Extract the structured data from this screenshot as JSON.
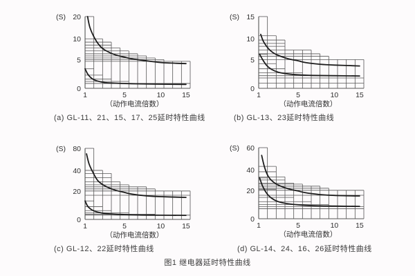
{
  "figure_caption": "图1 继电器延时特性曲线",
  "colors": {
    "background": "#fdfbfc",
    "grid": "#555555",
    "curve": "#1c1c1c",
    "text": "#2f2f2f",
    "caption_text": "#3b3b3b"
  },
  "chart_data": [
    {
      "type": "line",
      "id": "a",
      "caption": "(a) GL-11、21、15、17、25延时特性曲线",
      "y_unit": "(S)",
      "xlabel": "（动作电流倍数）",
      "x_ticks": [
        1,
        5,
        10,
        15
      ],
      "y_ticks": [
        0,
        5,
        10,
        20
      ],
      "xlim": [
        1,
        15
      ],
      "ylim": [
        0,
        20
      ],
      "series": [
        {
          "name": "upper-limit-curve",
          "points": [
            [
              1.25,
              20
            ],
            [
              1.5,
              15
            ],
            [
              2,
              10
            ],
            [
              2.5,
              8.3
            ],
            [
              3,
              7.3
            ],
            [
              4,
              6.2
            ],
            [
              5,
              5.6
            ],
            [
              6,
              5.2
            ],
            [
              8,
              4.8
            ],
            [
              10,
              4.5
            ],
            [
              12,
              4.4
            ],
            [
              15,
              4.3
            ]
          ]
        },
        {
          "name": "lower-limit-curve",
          "points": [
            [
              1,
              3.4
            ],
            [
              1.3,
              2.4
            ],
            [
              1.7,
              1.7
            ],
            [
              2.2,
              1.3
            ],
            [
              3,
              1.0
            ],
            [
              4,
              0.9
            ],
            [
              6,
              0.8
            ],
            [
              10,
              0.72
            ],
            [
              15,
              0.68
            ]
          ]
        }
      ],
      "grid_steps_upper": [
        [
          1,
          20
        ],
        [
          2,
          10
        ],
        [
          3,
          9.2
        ],
        [
          3,
          8.5
        ],
        [
          4,
          7.8
        ],
        [
          5,
          7.1
        ],
        [
          6,
          6.4
        ],
        [
          7,
          5.9
        ],
        [
          8,
          5.4
        ],
        [
          9,
          5.0
        ],
        [
          12,
          4.7
        ]
      ],
      "grid_steps_lower": [
        [
          1,
          3.4
        ],
        [
          2,
          2.3
        ],
        [
          3,
          1.6
        ],
        [
          5,
          1.2
        ],
        [
          12,
          0.85
        ]
      ]
    },
    {
      "type": "line",
      "id": "b",
      "caption": "(b) GL-13、23延时特性曲线",
      "y_unit": "(S)",
      "xlabel": "（动作电流倍数）",
      "x_ticks": [
        1,
        5,
        10,
        15
      ],
      "y_ticks": [
        0,
        5,
        10,
        15
      ],
      "xlim": [
        1,
        15
      ],
      "ylim": [
        0,
        15
      ],
      "series": [
        {
          "name": "upper-limit-curve",
          "points": [
            [
              1.2,
              11
            ],
            [
              1.5,
              9.3
            ],
            [
              2,
              7.6
            ],
            [
              2.5,
              6.6
            ],
            [
              3,
              6.0
            ],
            [
              4,
              5.2
            ],
            [
              5,
              4.8
            ],
            [
              6,
              4.5
            ],
            [
              8,
              4.2
            ],
            [
              10,
              4.05
            ],
            [
              15,
              3.9
            ]
          ]
        },
        {
          "name": "lower-limit-curve",
          "points": [
            [
              1.1,
              6.3
            ],
            [
              1.4,
              5.0
            ],
            [
              1.8,
              4.0
            ],
            [
              2.3,
              3.3
            ],
            [
              3,
              2.8
            ],
            [
              4,
              2.5
            ],
            [
              5,
              2.35
            ],
            [
              7,
              2.25
            ],
            [
              10,
              2.2
            ],
            [
              15,
              2.15
            ]
          ]
        }
      ],
      "grid_steps_upper": [
        [
          1,
          15
        ],
        [
          2,
          10.7
        ],
        [
          3,
          9.7
        ],
        [
          3,
          8.9
        ],
        [
          3,
          8.2
        ],
        [
          6,
          7.3
        ],
        [
          7,
          6.4
        ],
        [
          8,
          5.8
        ],
        [
          12,
          5.0
        ]
      ],
      "grid_steps_lower": [
        [
          1,
          6.3
        ],
        [
          2,
          4.3
        ],
        [
          3,
          3.4
        ],
        [
          5,
          2.7
        ],
        [
          8,
          2.2
        ],
        [
          12,
          1.8
        ],
        [
          12,
          0.9
        ]
      ]
    },
    {
      "type": "line",
      "id": "c",
      "caption": "(c) GL-12、22延时特性曲线",
      "y_unit": "(S)",
      "xlabel": "（动作电流倍数）",
      "x_ticks": [
        1,
        5,
        10,
        15
      ],
      "y_ticks": [
        0,
        20,
        40,
        80
      ],
      "xlim": [
        1,
        15
      ],
      "ylim": [
        0,
        80
      ],
      "series": [
        {
          "name": "upper-limit-curve",
          "points": [
            [
              1.15,
              70
            ],
            [
              1.4,
              52
            ],
            [
              1.8,
              38
            ],
            [
              2.3,
              30
            ],
            [
              3,
              25
            ],
            [
              4,
              21
            ],
            [
              5,
              19
            ],
            [
              6,
              17.8
            ],
            [
              8,
              16.6
            ],
            [
              10,
              16
            ],
            [
              15,
              15.5
            ]
          ]
        },
        {
          "name": "lower-limit-curve",
          "points": [
            [
              1,
              13
            ],
            [
              1.3,
              9
            ],
            [
              1.8,
              6.3
            ],
            [
              2.5,
              4.8
            ],
            [
              3.5,
              3.9
            ],
            [
              5,
              3.4
            ],
            [
              7,
              3.1
            ],
            [
              10,
              2.95
            ],
            [
              15,
              2.85
            ]
          ]
        }
      ],
      "grid_steps_upper": [
        [
          1,
          80
        ],
        [
          2,
          40
        ],
        [
          3,
          37
        ],
        [
          3,
          33
        ],
        [
          4,
          29
        ],
        [
          5,
          26
        ],
        [
          7,
          24
        ],
        [
          8,
          22
        ],
        [
          12,
          20
        ],
        [
          12,
          17
        ]
      ],
      "grid_steps_lower": [
        [
          1,
          13
        ],
        [
          2,
          9
        ],
        [
          3,
          6.2
        ],
        [
          5,
          4.6
        ],
        [
          8,
          3.6
        ],
        [
          12,
          3.0
        ]
      ]
    },
    {
      "type": "line",
      "id": "d",
      "caption": "(d) GL-14、24、16、26延时特性曲线",
      "y_unit": "(S)",
      "xlabel": "（动作电流倍数）",
      "x_ticks": [
        1,
        5,
        10,
        15
      ],
      "y_ticks": [
        0,
        20,
        40,
        60
      ],
      "xlim": [
        1,
        15
      ],
      "ylim": [
        0,
        60
      ],
      "series": [
        {
          "name": "upper-limit-curve",
          "points": [
            [
              1.3,
              53
            ],
            [
              1.6,
              42
            ],
            [
              2,
              33
            ],
            [
              2.5,
              28
            ],
            [
              3,
              25
            ],
            [
              4,
              21.5
            ],
            [
              5,
              19.5
            ],
            [
              6,
              18.3
            ],
            [
              8,
              17
            ],
            [
              10,
              16.4
            ],
            [
              15,
              16
            ]
          ]
        },
        {
          "name": "lower-limit-curve",
          "points": [
            [
              1.1,
              32
            ],
            [
              1.4,
              24
            ],
            [
              1.8,
              18
            ],
            [
              2.3,
              14.5
            ],
            [
              3,
              12
            ],
            [
              4,
              10.5
            ],
            [
              5,
              9.8
            ],
            [
              7,
              9.2
            ],
            [
              10,
              8.9
            ],
            [
              15,
              8.7
            ]
          ]
        }
      ],
      "grid_steps_upper": [
        [
          1,
          60
        ],
        [
          2,
          43
        ],
        [
          2,
          38
        ],
        [
          3,
          33
        ],
        [
          3,
          30
        ],
        [
          4,
          27
        ],
        [
          5,
          26
        ],
        [
          7,
          24
        ],
        [
          8,
          22
        ],
        [
          12,
          20
        ],
        [
          12,
          16.5
        ]
      ],
      "grid_steps_lower": [
        [
          1,
          32
        ],
        [
          2,
          21
        ],
        [
          4,
          15
        ],
        [
          6,
          12
        ],
        [
          8,
          10
        ],
        [
          12,
          8.5
        ],
        [
          12,
          7
        ]
      ]
    }
  ]
}
